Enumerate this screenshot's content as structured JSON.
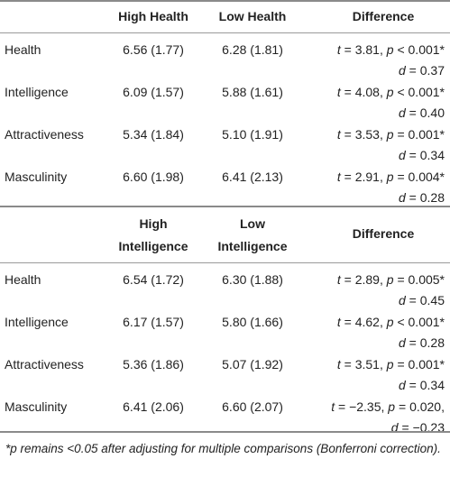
{
  "section1": {
    "headers": [
      "High Health",
      "Low Health",
      "Difference"
    ],
    "rows": [
      {
        "label": "Health",
        "col1": "6.56 (1.77)",
        "col2": "6.28 (1.81)",
        "t": "3.81",
        "p_op": "<",
        "p": "0.001*",
        "d": "0.37"
      },
      {
        "label": "Intelligence",
        "col1": "6.09 (1.57)",
        "col2": "5.88 (1.61)",
        "t": "4.08",
        "p_op": "<",
        "p": "0.001*",
        "d": "0.40"
      },
      {
        "label": "Attractiveness",
        "col1": "5.34 (1.84)",
        "col2": "5.10 (1.91)",
        "t": "3.53",
        "p_op": "=",
        "p": "0.001*",
        "d": "0.34"
      },
      {
        "label": "Masculinity",
        "col1": "6.60 (1.98)",
        "col2": "6.41 (2.13)",
        "t": "2.91",
        "p_op": "=",
        "p": "0.004*",
        "d": "0.28"
      }
    ]
  },
  "section2": {
    "headers": [
      "High",
      "Intelligence",
      "Low",
      "Intelligence",
      "Difference"
    ],
    "rows": [
      {
        "label": "Health",
        "col1": "6.54 (1.72)",
        "col2": "6.30 (1.88)",
        "t": "2.89",
        "p_op": "=",
        "p": "0.005*",
        "d": "0.45"
      },
      {
        "label": "Intelligence",
        "col1": "6.17 (1.57)",
        "col2": "5.80 (1.66)",
        "t": "4.62",
        "p_op": "<",
        "p": "0.001*",
        "d": "0.28"
      },
      {
        "label": "Attractiveness",
        "col1": "5.36 (1.86)",
        "col2": "5.07 (1.92)",
        "t": "3.51",
        "p_op": "=",
        "p": "0.001*",
        "d": "0.34"
      },
      {
        "label": "Masculinity",
        "col1": "6.41 (2.06)",
        "col2": "6.60 (2.07)",
        "t": "−2.35",
        "p_op": "=",
        "p": "0.020,",
        "d": "−0.23"
      }
    ]
  },
  "symbols": {
    "t": "t",
    "p": "p",
    "d": "d",
    "eq": "=",
    "comma": ","
  },
  "footnote": {
    "star": "*",
    "p": "p",
    "text": " remains <0.05 after adjusting for multiple comparisons (Bonferroni correction)."
  }
}
